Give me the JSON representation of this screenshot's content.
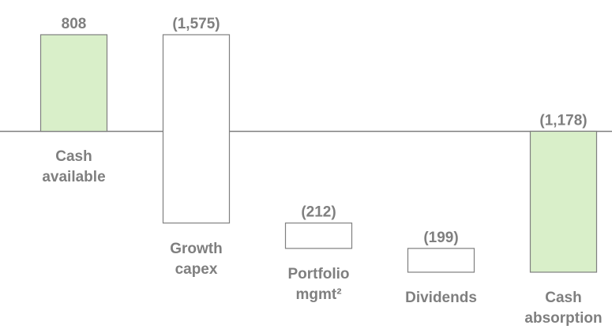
{
  "chart_data": {
    "type": "waterfall",
    "categories": [
      "Cash available",
      "Growth capex",
      "Portfolio mgmt²",
      "Dividends",
      "Cash absorption"
    ],
    "values": [
      808,
      -1575,
      -212,
      -199,
      -1178
    ],
    "value_labels": [
      "808",
      "(1,575)",
      "(212)",
      "(199)",
      "(1,178)"
    ],
    "measures": [
      "absolute",
      "relative",
      "relative",
      "relative",
      "total"
    ],
    "total_color": "#d9efc9",
    "step_color": "#ffffff",
    "edge_color": "#7f7f7f"
  }
}
